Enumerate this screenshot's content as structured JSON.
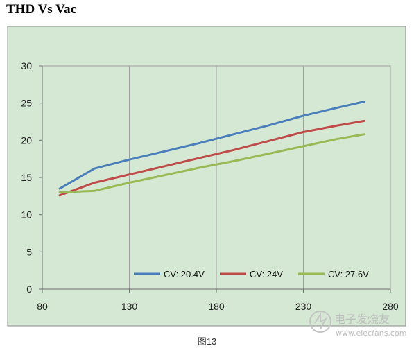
{
  "title": "THD Vs Vac",
  "caption": "图13",
  "watermark": {
    "line1": "电子发烧友",
    "line2": "www.elecfans.com"
  },
  "colors": {
    "chart_bg": "#d5e8d4",
    "plot_bg": "#d5e8d4",
    "frame": "#8a8a8a",
    "grid": "#9e9e9e",
    "axis": "#6b6b6b"
  },
  "chart_data": {
    "type": "line",
    "title": "",
    "xlabel": "",
    "ylabel": "",
    "xlim": [
      80,
      280
    ],
    "ylim": [
      0,
      30
    ],
    "xticks": [
      80,
      130,
      180,
      230,
      280
    ],
    "yticks": [
      0,
      5,
      10,
      15,
      20,
      25,
      30
    ],
    "grid": "vertical",
    "legend": "bottom-right",
    "series": [
      {
        "name": "CV: 20.4V",
        "color": "#4a7ebb",
        "x": [
          90,
          110,
          130,
          150,
          170,
          190,
          210,
          230,
          250,
          265
        ],
        "y": [
          13.5,
          16.2,
          17.4,
          18.5,
          19.6,
          20.8,
          22.0,
          23.3,
          24.4,
          25.2
        ]
      },
      {
        "name": "CV: 24V",
        "color": "#be4b48",
        "x": [
          90,
          110,
          130,
          150,
          170,
          190,
          210,
          230,
          250,
          265
        ],
        "y": [
          12.6,
          14.3,
          15.4,
          16.5,
          17.6,
          18.7,
          19.9,
          21.1,
          22.0,
          22.6
        ]
      },
      {
        "name": "CV: 27.6V",
        "color": "#98b954",
        "x": [
          90,
          110,
          130,
          150,
          170,
          190,
          210,
          230,
          250,
          265
        ],
        "y": [
          13.0,
          13.2,
          14.3,
          15.3,
          16.3,
          17.2,
          18.2,
          19.2,
          20.2,
          20.8
        ]
      }
    ]
  }
}
